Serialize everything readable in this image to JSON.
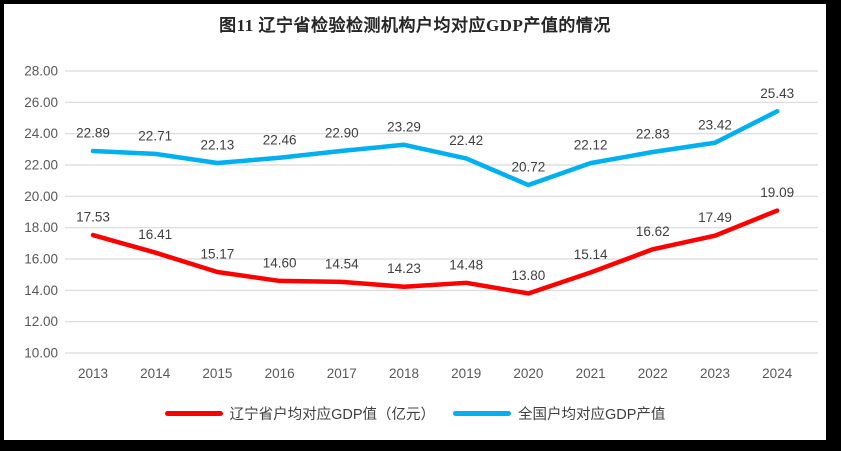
{
  "title": "图11 辽宁省检验检测机构户均对应GDP产值的情况",
  "colors": {
    "liaoning": "#FF0000",
    "national": "#00B0F0",
    "gridline": "#D9D9D9",
    "axis_text": "#595959",
    "label_text": "#404040",
    "frame": "#000000",
    "background": "#FFFFFF"
  },
  "legend": [
    {
      "name": "辽宁省户均对应GDP值（亿元）",
      "color_key": "liaoning"
    },
    {
      "name": "全国户均对应GDP产值",
      "color_key": "national"
    }
  ],
  "chart_data": {
    "type": "line",
    "title": "图11 辽宁省检验检测机构户均对应GDP产值的情况",
    "categories": [
      "2013",
      "2014",
      "2015",
      "2016",
      "2017",
      "2018",
      "2019",
      "2020",
      "2021",
      "2022",
      "2023",
      "2024"
    ],
    "series": [
      {
        "name": "辽宁省户均对应GDP值（亿元）",
        "color_key": "liaoning",
        "values": [
          17.53,
          16.41,
          15.17,
          14.6,
          14.54,
          14.23,
          14.48,
          13.8,
          15.14,
          16.62,
          17.49,
          19.09
        ]
      },
      {
        "name": "全国户均对应GDP产值",
        "color_key": "national",
        "values": [
          22.89,
          22.71,
          22.13,
          22.46,
          22.9,
          23.29,
          22.42,
          20.72,
          22.12,
          22.83,
          23.42,
          25.43
        ]
      }
    ],
    "xlabel": "",
    "ylabel": "",
    "ylim": [
      10,
      28
    ],
    "ytick_step": 2,
    "ytick_decimals": 2,
    "grid": true,
    "data_labels": true,
    "legend_position": "bottom"
  }
}
